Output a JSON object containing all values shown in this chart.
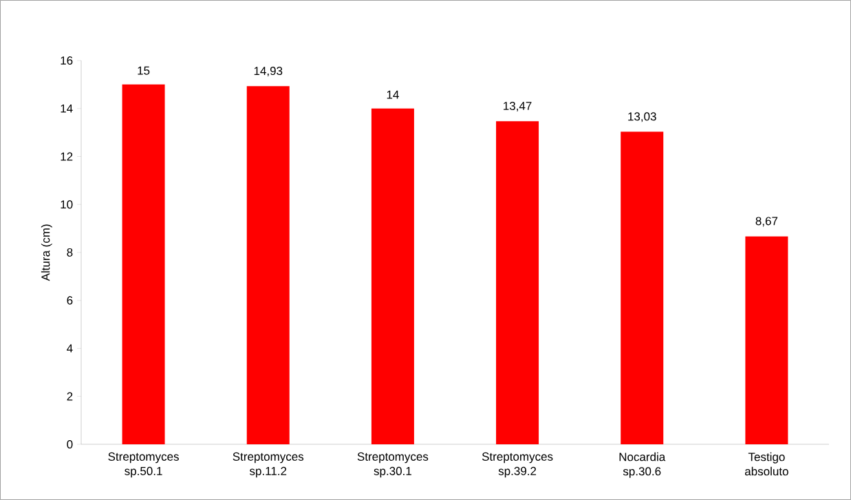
{
  "chart_data": {
    "type": "bar",
    "ylabel": "Altura (cm)",
    "categories": [
      "Streptomyces sp.50.1",
      "Streptomyces sp.11.2",
      "Streptomyces sp.30.1",
      "Streptomyces sp.39.2",
      "Nocardia sp.30.6",
      "Testigo absoluto"
    ],
    "values": [
      15,
      14.93,
      14,
      13.47,
      13.03,
      8.67
    ],
    "value_labels": [
      "15",
      "14,93",
      "14",
      "13,47",
      "13,03",
      "8,67"
    ],
    "color": "#ff0000",
    "ylim": [
      0,
      16
    ],
    "yticks": [
      0,
      2,
      4,
      6,
      8,
      10,
      12,
      14,
      16
    ],
    "grid": false
  }
}
